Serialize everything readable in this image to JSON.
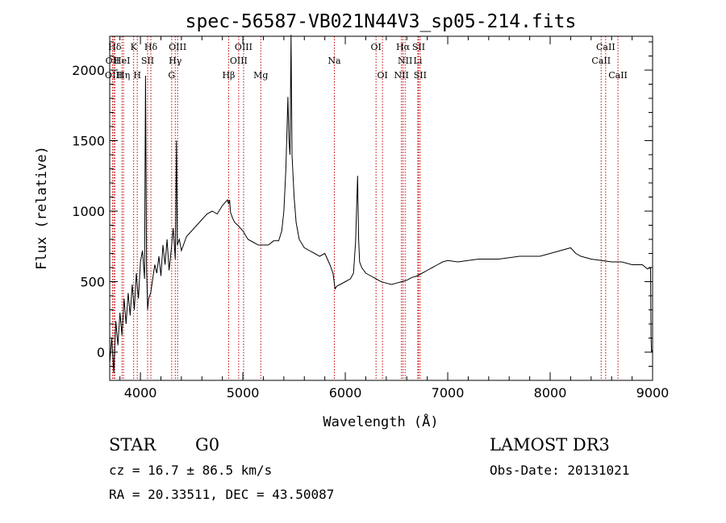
{
  "chart_data": {
    "type": "line",
    "title": "spec-56587-VB021N44V3_sp05-214.fits",
    "xlabel": "Wavelength (Å)",
    "ylabel": "Flux (relative)",
    "xlim": [
      3700,
      9000
    ],
    "ylim": [
      -200,
      2240
    ],
    "x_ticks": [
      4000,
      5000,
      6000,
      7000,
      8000,
      9000
    ],
    "y_ticks": [
      0,
      500,
      1000,
      1500,
      2000
    ],
    "grid": false,
    "series": [
      {
        "color": "#000000",
        "x": [
          3700,
          3720,
          3740,
          3760,
          3780,
          3800,
          3820,
          3840,
          3860,
          3880,
          3900,
          3920,
          3940,
          3960,
          3980,
          4000,
          4020,
          4040,
          4050,
          4060,
          4070,
          4080,
          4100,
          4120,
          4140,
          4160,
          4180,
          4200,
          4220,
          4240,
          4260,
          4280,
          4300,
          4320,
          4340,
          4352,
          4360,
          4380,
          4400,
          4450,
          4500,
          4550,
          4600,
          4650,
          4700,
          4750,
          4800,
          4850,
          4861,
          4870,
          4880,
          4900,
          4920,
          4950,
          5000,
          5050,
          5100,
          5150,
          5200,
          5250,
          5300,
          5350,
          5380,
          5400,
          5420,
          5440,
          5450,
          5460,
          5470,
          5480,
          5500,
          5520,
          5550,
          5600,
          5650,
          5700,
          5750,
          5800,
          5850,
          5880,
          5900,
          5920,
          5950,
          6000,
          6050,
          6080,
          6100,
          6120,
          6130,
          6140,
          6160,
          6200,
          6250,
          6300,
          6350,
          6400,
          6450,
          6500,
          6550,
          6600,
          6650,
          6700,
          6750,
          6800,
          6850,
          6900,
          6950,
          7000,
          7100,
          7200,
          7300,
          7400,
          7500,
          7600,
          7700,
          7800,
          7900,
          8000,
          8100,
          8200,
          8250,
          8300,
          8400,
          8500,
          8600,
          8700,
          8800,
          8900,
          8950,
          8980,
          8985,
          8990,
          8995,
          9000
        ],
        "y": [
          -80,
          100,
          -150,
          220,
          50,
          280,
          120,
          380,
          200,
          420,
          260,
          480,
          300,
          560,
          380,
          640,
          720,
          520,
          1960,
          600,
          300,
          380,
          420,
          520,
          620,
          560,
          680,
          540,
          760,
          620,
          800,
          580,
          720,
          880,
          660,
          1500,
          760,
          800,
          720,
          820,
          860,
          900,
          940,
          980,
          1000,
          980,
          1040,
          1080,
          1050,
          1080,
          990,
          950,
          920,
          900,
          860,
          800,
          780,
          760,
          760,
          760,
          790,
          790,
          860,
          1000,
          1300,
          1810,
          1500,
          1400,
          2250,
          1400,
          1100,
          920,
          800,
          740,
          720,
          700,
          680,
          700,
          620,
          560,
          450,
          470,
          480,
          500,
          520,
          560,
          780,
          1250,
          800,
          640,
          600,
          560,
          540,
          520,
          500,
          490,
          480,
          490,
          500,
          510,
          530,
          540,
          560,
          580,
          600,
          620,
          640,
          650,
          640,
          650,
          660,
          660,
          660,
          670,
          680,
          680,
          680,
          700,
          720,
          740,
          700,
          680,
          660,
          650,
          640,
          640,
          620,
          620,
          590,
          600,
          100,
          0,
          10,
          0
        ]
      }
    ],
    "line_markers": [
      {
        "label": "Hδ",
        "x": 3750,
        "row": 1
      },
      {
        "label": "OII",
        "x": 3727,
        "row": 2
      },
      {
        "label": "OIII",
        "x": 3740,
        "row": 3
      },
      {
        "label": "HeI",
        "x": 3820,
        "row": 2
      },
      {
        "label": "Hη",
        "x": 3835,
        "row": 3
      },
      {
        "label": "K",
        "x": 3934,
        "row": 1
      },
      {
        "label": "SII",
        "x": 4070,
        "row": 2
      },
      {
        "label": "H",
        "x": 3969,
        "row": 3
      },
      {
        "label": "Hδ",
        "x": 4102,
        "row": 1
      },
      {
        "label": "OIII",
        "x": 4363,
        "row": 1
      },
      {
        "label": "Hγ",
        "x": 4340,
        "row": 2
      },
      {
        "label": "G",
        "x": 4305,
        "row": 3
      },
      {
        "label": "Hβ",
        "x": 4861,
        "row": 3
      },
      {
        "label": "OIII",
        "x": 5007,
        "row": 1
      },
      {
        "label": "OIII",
        "x": 4959,
        "row": 2
      },
      {
        "label": "Mg",
        "x": 5175,
        "row": 3
      },
      {
        "label": "Na",
        "x": 5893,
        "row": 2
      },
      {
        "label": "OI",
        "x": 6300,
        "row": 1
      },
      {
        "label": "OI",
        "x": 6363,
        "row": 3
      },
      {
        "label": "Hα",
        "x": 6563,
        "row": 1
      },
      {
        "label": "SII",
        "x": 6716,
        "row": 1
      },
      {
        "label": "NII",
        "x": 6584,
        "row": 2
      },
      {
        "label": "Li",
        "x": 6708,
        "row": 2
      },
      {
        "label": "NII",
        "x": 6548,
        "row": 3
      },
      {
        "label": "SII",
        "x": 6731,
        "row": 3
      },
      {
        "label": "CaII",
        "x": 8542,
        "row": 1
      },
      {
        "label": "CaII",
        "x": 8498,
        "row": 2
      },
      {
        "label": "CaII",
        "x": 8662,
        "row": 3
      }
    ]
  },
  "info": {
    "object_class": "STAR",
    "subclass": "G0",
    "survey": "LAMOST DR3",
    "cz": "cz = 16.7 ± 86.5 km/s",
    "obs_date": "Obs-Date: 20131021",
    "coords": "RA =  20.33511, DEC =  43.50087"
  }
}
